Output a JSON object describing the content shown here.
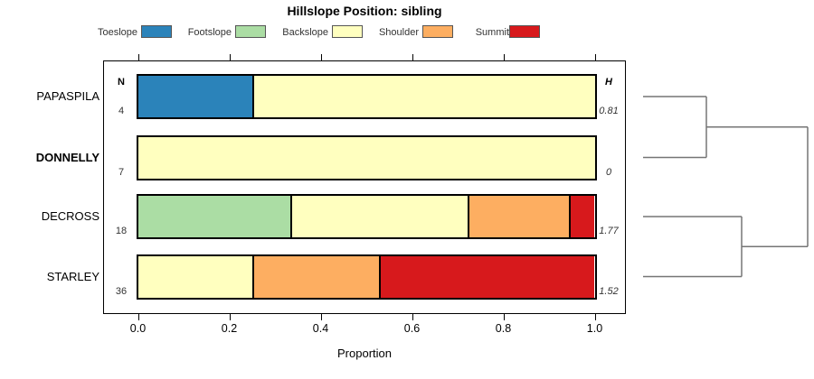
{
  "chart_data": {
    "type": "bar",
    "stacked": true,
    "orientation": "horizontal",
    "title": "Hillslope Position: sibling",
    "xlabel": "Proportion",
    "xlim": [
      0,
      1
    ],
    "x_ticks": [
      "0.0",
      "0.2",
      "0.4",
      "0.6",
      "0.8",
      "1.0"
    ],
    "x_tick_values": [
      0,
      0.2,
      0.4,
      0.6,
      0.8,
      1.0
    ],
    "grid": false,
    "legend_position": "top",
    "legend": [
      {
        "label": "Toeslope",
        "color": "#2B83BA"
      },
      {
        "label": "Footslope",
        "color": "#ABDDA4"
      },
      {
        "label": "Backslope",
        "color": "#FFFFBF"
      },
      {
        "label": "Shoulder",
        "color": "#FDAE61"
      },
      {
        "label": "Summit",
        "color": "#D7191C"
      }
    ],
    "columns": {
      "n_header": "N",
      "h_header": "H"
    },
    "rows": [
      {
        "name": "PAPASPILA",
        "bold": false,
        "n": "4",
        "h": "0.81",
        "segments": [
          {
            "series": "Toeslope",
            "value": 0.25
          },
          {
            "series": "Backslope",
            "value": 0.75
          }
        ]
      },
      {
        "name": "DONNELLY",
        "bold": true,
        "n": "7",
        "h": "0",
        "segments": [
          {
            "series": "Backslope",
            "value": 1
          }
        ]
      },
      {
        "name": "DECROSS",
        "bold": false,
        "n": "18",
        "h": "1.77",
        "segments": [
          {
            "series": "Footslope",
            "value": 0.3333
          },
          {
            "series": "Backslope",
            "value": 0.3889
          },
          {
            "series": "Shoulder",
            "value": 0.2222
          },
          {
            "series": "Summit",
            "value": 0.0556
          }
        ]
      },
      {
        "name": "STARLEY",
        "bold": false,
        "n": "36",
        "h": "1.52",
        "segments": [
          {
            "series": "Backslope",
            "value": 0.25
          },
          {
            "series": "Shoulder",
            "value": 0.2778
          },
          {
            "series": "Summit",
            "value": 0.4722
          }
        ]
      }
    ],
    "dendrogram": {
      "leaf_x": 711,
      "merges": [
        {
          "leaves": [
            0,
            1
          ],
          "join_x": 781
        },
        {
          "leaves": [
            2,
            3
          ],
          "join_x": 820
        }
      ],
      "root_x": 893,
      "line_color": "#757575"
    }
  }
}
